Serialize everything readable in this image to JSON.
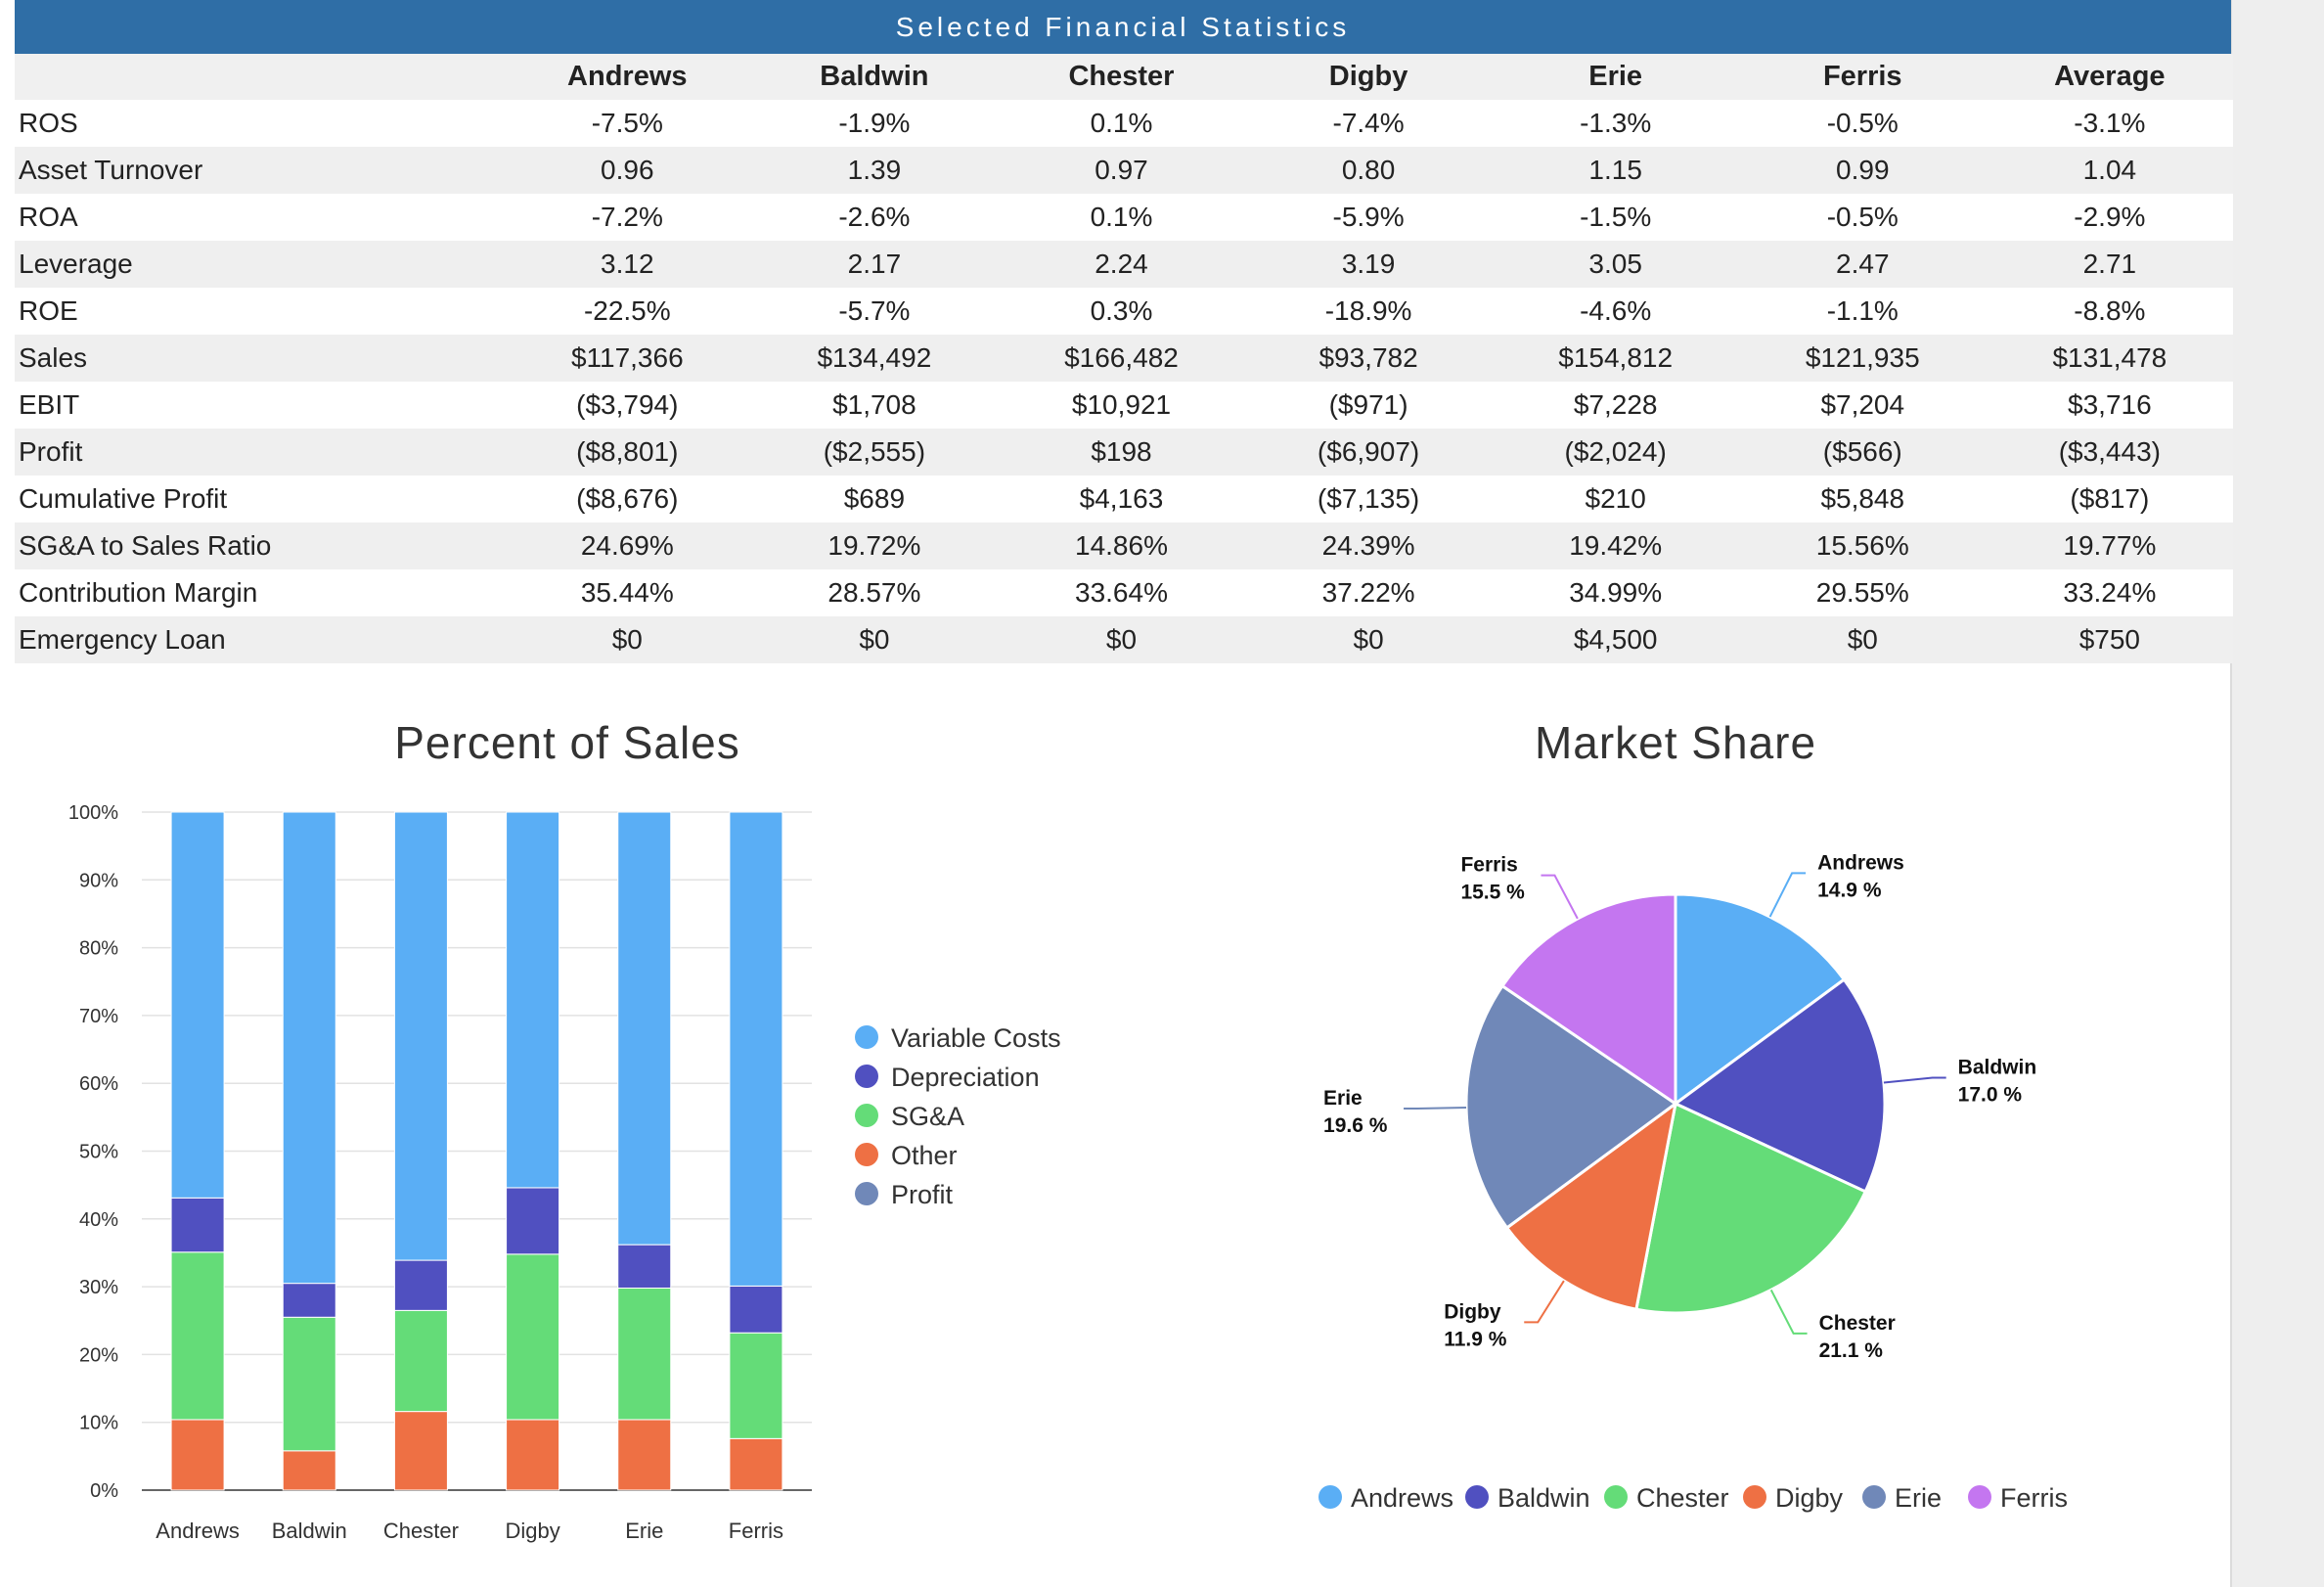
{
  "banner_title": "Selected Financial Statistics",
  "table": {
    "columns": [
      "Andrews",
      "Baldwin",
      "Chester",
      "Digby",
      "Erie",
      "Ferris",
      "Average"
    ],
    "rows": [
      {
        "label": "ROS",
        "values": [
          "-7.5%",
          "-1.9%",
          "0.1%",
          "-7.4%",
          "-1.3%",
          "-0.5%",
          "-3.1%"
        ]
      },
      {
        "label": "Asset Turnover",
        "values": [
          "0.96",
          "1.39",
          "0.97",
          "0.80",
          "1.15",
          "0.99",
          "1.04"
        ]
      },
      {
        "label": "ROA",
        "values": [
          "-7.2%",
          "-2.6%",
          "0.1%",
          "-5.9%",
          "-1.5%",
          "-0.5%",
          "-2.9%"
        ]
      },
      {
        "label": "Leverage",
        "values": [
          "3.12",
          "2.17",
          "2.24",
          "3.19",
          "3.05",
          "2.47",
          "2.71"
        ]
      },
      {
        "label": "ROE",
        "values": [
          "-22.5%",
          "-5.7%",
          "0.3%",
          "-18.9%",
          "-4.6%",
          "-1.1%",
          "-8.8%"
        ]
      },
      {
        "label": "Sales",
        "values": [
          "$117,366",
          "$134,492",
          "$166,482",
          "$93,782",
          "$154,812",
          "$121,935",
          "$131,478"
        ]
      },
      {
        "label": "EBIT",
        "values": [
          "($3,794)",
          "$1,708",
          "$10,921",
          "($971)",
          "$7,228",
          "$7,204",
          "$3,716"
        ]
      },
      {
        "label": "Profit",
        "values": [
          "($8,801)",
          "($2,555)",
          "$198",
          "($6,907)",
          "($2,024)",
          "($566)",
          "($3,443)"
        ]
      },
      {
        "label": "Cumulative Profit",
        "values": [
          "($8,676)",
          "$689",
          "$4,163",
          "($7,135)",
          "$210",
          "$5,848",
          "($817)"
        ]
      },
      {
        "label": "SG&A to Sales Ratio",
        "values": [
          "24.69%",
          "19.72%",
          "14.86%",
          "24.39%",
          "19.42%",
          "15.56%",
          "19.77%"
        ]
      },
      {
        "label": "Contribution Margin",
        "values": [
          "35.44%",
          "28.57%",
          "33.64%",
          "37.22%",
          "34.99%",
          "29.55%",
          "33.24%"
        ]
      },
      {
        "label": "Emergency Loan",
        "values": [
          "$0",
          "$0",
          "$0",
          "$0",
          "$4,500",
          "$0",
          "$750"
        ]
      }
    ]
  },
  "colors": {
    "banner": "#2f6ea6",
    "variable_costs": "#5aaef5",
    "depreciation": "#5050c0",
    "sga": "#64dc78",
    "other": "#ee7044",
    "profit": "#7088b8",
    "andrews": "#5aaef5",
    "baldwin": "#5050c0",
    "chester": "#64dc78",
    "digby": "#ee7044",
    "erie": "#7088b8",
    "ferris": "#c476f0"
  },
  "chart_data": [
    {
      "type": "bar",
      "stacked": true,
      "title": "Percent of Sales",
      "categories": [
        "Andrews",
        "Baldwin",
        "Chester",
        "Digby",
        "Erie",
        "Ferris"
      ],
      "ylim": [
        0,
        100
      ],
      "yticks": [
        "0%",
        "10%",
        "20%",
        "30%",
        "40%",
        "50%",
        "60%",
        "70%",
        "80%",
        "90%",
        "100%"
      ],
      "grid": true,
      "legend_position": "right",
      "series": [
        {
          "name": "Other",
          "color": "#ee7044",
          "values": [
            10.4,
            5.8,
            11.6,
            10.4,
            10.4,
            7.6
          ]
        },
        {
          "name": "SG&A",
          "color": "#64dc78",
          "values": [
            24.7,
            19.7,
            14.9,
            24.4,
            19.4,
            15.6
          ]
        },
        {
          "name": "Depreciation",
          "color": "#5050c0",
          "values": [
            8.0,
            5.0,
            7.4,
            9.8,
            6.4,
            6.9
          ]
        },
        {
          "name": "Variable Costs",
          "color": "#5aaef5",
          "values": [
            56.9,
            69.5,
            66.1,
            55.4,
            63.8,
            69.9
          ]
        },
        {
          "name": "Profit",
          "color": "#7088b8",
          "values": [
            0,
            0,
            0,
            0,
            0,
            0
          ]
        }
      ],
      "legend": [
        "Variable Costs",
        "Depreciation",
        "SG&A",
        "Other",
        "Profit"
      ]
    },
    {
      "type": "pie",
      "title": "Market Share",
      "legend_position": "bottom",
      "slices": [
        {
          "name": "Andrews",
          "value": 14.9,
          "label": "14.9 %",
          "color": "#5aaef5"
        },
        {
          "name": "Baldwin",
          "value": 17.0,
          "label": "17.0 %",
          "color": "#5050c0"
        },
        {
          "name": "Chester",
          "value": 21.1,
          "label": "21.1 %",
          "color": "#64dc78"
        },
        {
          "name": "Digby",
          "value": 11.9,
          "label": "11.9 %",
          "color": "#ee7044"
        },
        {
          "name": "Erie",
          "value": 19.6,
          "label": "19.6 %",
          "color": "#7088b8"
        },
        {
          "name": "Ferris",
          "value": 15.5,
          "label": "15.5 %",
          "color": "#c476f0"
        }
      ]
    }
  ]
}
